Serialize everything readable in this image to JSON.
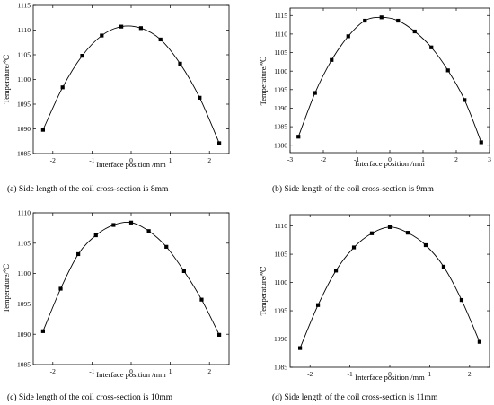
{
  "colors": {
    "line": "#000000",
    "marker": "#000000",
    "background": "#ffffff"
  },
  "chart_data": [
    {
      "type": "line",
      "caption": "(a)  Side length of the coil cross-section is 8mm",
      "xlabel": "Interface position /mm",
      "ylabel": "Temperature/℃",
      "xlim": [
        -2.5,
        2.5
      ],
      "ylim": [
        1085,
        1115
      ],
      "xticks": [
        -2,
        -1,
        0,
        1,
        2
      ],
      "yticks": [
        1085,
        1090,
        1095,
        1100,
        1105,
        1110,
        1115
      ],
      "grid": false,
      "series": [
        {
          "x": [
            -2.25,
            -1.75,
            -1.25,
            -0.75,
            -0.25,
            0.25,
            0.75,
            1.25,
            1.75,
            2.25
          ],
          "y": [
            1089.8,
            1098.4,
            1104.8,
            1108.9,
            1110.7,
            1110.4,
            1108.1,
            1103.2,
            1096.3,
            1087.1
          ]
        }
      ]
    },
    {
      "type": "line",
      "caption": "(b) Side length of the coil cross-section is 9mm",
      "xlabel": "Interface position /mm",
      "ylabel": "Temperature/℃",
      "xlim": [
        -3,
        3
      ],
      "ylim": [
        1078,
        1117
      ],
      "xticks": [
        -3,
        -2,
        -1,
        0,
        1,
        2,
        3
      ],
      "yticks": [
        1080,
        1085,
        1090,
        1095,
        1100,
        1105,
        1110,
        1115
      ],
      "grid": false,
      "series": [
        {
          "x": [
            -2.75,
            -2.25,
            -1.75,
            -1.25,
            -0.75,
            -0.25,
            0.25,
            0.75,
            1.25,
            1.75,
            2.25,
            2.75
          ],
          "y": [
            1082.3,
            1094.1,
            1103.0,
            1109.4,
            1113.6,
            1114.5,
            1113.6,
            1110.7,
            1106.4,
            1100.2,
            1092.2,
            1080.8
          ]
        }
      ]
    },
    {
      "type": "line",
      "caption": "(c) Side length of the coil cross-section is 10mm",
      "xlabel": "Interface position /mm",
      "ylabel": "Temperature/℃",
      "xlim": [
        -2.5,
        2.5
      ],
      "ylim": [
        1085,
        1110
      ],
      "xticks": [
        -2,
        -1,
        0,
        1,
        2
      ],
      "yticks": [
        1085,
        1090,
        1095,
        1100,
        1105,
        1110
      ],
      "grid": false,
      "series": [
        {
          "x": [
            -2.25,
            -1.8,
            -1.35,
            -0.9,
            -0.45,
            0,
            0.45,
            0.9,
            1.35,
            1.8,
            2.25
          ],
          "y": [
            1090.5,
            1097.5,
            1103.2,
            1106.3,
            1108.0,
            1108.4,
            1107.0,
            1104.4,
            1100.4,
            1095.7,
            1089.9
          ]
        }
      ]
    },
    {
      "type": "line",
      "caption": "(d) Side length of the coil cross-section is 11mm",
      "xlabel": "Interface position /mm",
      "ylabel": "Temperature/℃",
      "xlim": [
        -2.5,
        2.5
      ],
      "ylim": [
        1085,
        1112
      ],
      "xticks": [
        -2,
        -1,
        0,
        1,
        2
      ],
      "yticks": [
        1085,
        1090,
        1095,
        1100,
        1105,
        1110
      ],
      "grid": false,
      "series": [
        {
          "x": [
            -2.25,
            -1.8,
            -1.35,
            -0.9,
            -0.45,
            0,
            0.45,
            0.9,
            1.35,
            1.8,
            2.25
          ],
          "y": [
            1088.4,
            1096.0,
            1102.1,
            1106.2,
            1108.7,
            1109.8,
            1108.8,
            1106.6,
            1102.8,
            1096.9,
            1089.5
          ]
        }
      ]
    }
  ]
}
